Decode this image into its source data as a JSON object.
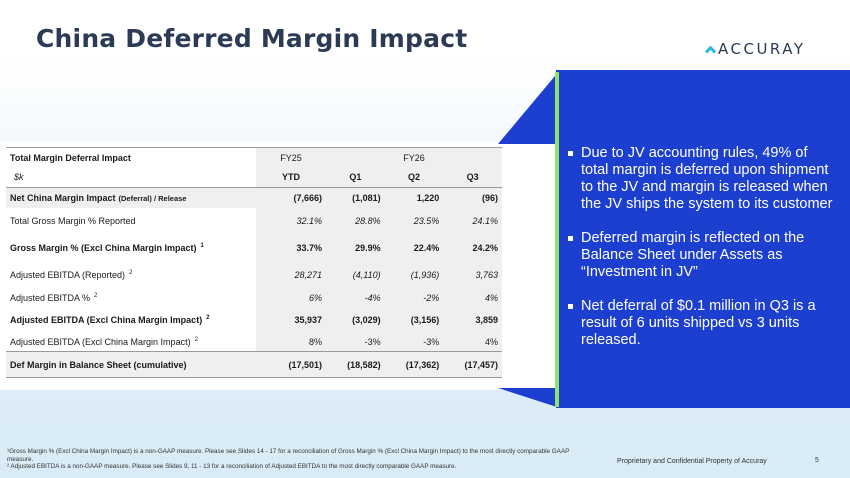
{
  "slide": {
    "title": "China Deferred Margin Impact",
    "logo": "ACCURAY",
    "page_number": "5",
    "proprietary": "Proprietary and Confidential Property of Accuray",
    "footnote1": "¹Gross Margin % (Excl China Margin Impact) is a non-GAAP measure.  Please see Slides 14 - 17 for a reconciliation of Gross Margin % (Excl China Margin Impact) to the most directly comparable GAAP measure.",
    "footnote2": "² Adjusted EBITDA is a non-GAAP measure. Please see Slides 9, 11 - 13 for a reconciliation of Adjusted EBITDA to the most directly comparable GAAP measure."
  },
  "table": {
    "header_label": "Total Margin Deferral Impact",
    "unit_label": "$k",
    "fy25": "FY25",
    "fy26": "FY26",
    "cols": [
      "YTD",
      "Q1",
      "Q2",
      "Q3"
    ],
    "rows": [
      {
        "label": "Net China Margin Impact",
        "label_suffix": "(Deferral) / Release",
        "sup": "",
        "values": [
          "(7,666)",
          "(1,081)",
          "1,220",
          "(96)"
        ],
        "style": "bold shade"
      },
      {
        "label": "Total Gross Margin % Reported",
        "label_suffix": "",
        "sup": "",
        "values": [
          "32.1%",
          "28.8%",
          "23.5%",
          "24.1%"
        ],
        "style": "italic"
      },
      {
        "label": "Gross Margin % (Excl China Margin Impact)",
        "label_suffix": "",
        "sup": "1",
        "values": [
          "33.7%",
          "29.9%",
          "22.4%",
          "24.2%"
        ],
        "style": "bold"
      },
      {
        "label": "Adjusted EBITDA (Reported)",
        "label_suffix": "",
        "sup": "2",
        "values": [
          "28,271",
          "(4,110)",
          "(1,936)",
          "3,763"
        ],
        "style": "italic"
      },
      {
        "label": "Adjusted EBITDA %",
        "label_suffix": "",
        "sup": "2",
        "values": [
          "6%",
          "-4%",
          "-2%",
          "4%"
        ],
        "style": "italic"
      },
      {
        "label": "Adjusted EBITDA (Excl China Margin Impact)",
        "label_suffix": "",
        "sup": "2",
        "values": [
          "35,937",
          "(3,029)",
          "(3,156)",
          "3,859"
        ],
        "style": "bold"
      },
      {
        "label": "Adjusted EBITDA (Excl China Margin Impact)",
        "label_suffix": "",
        "sup": "2",
        "values": [
          "8%",
          "-3%",
          "-3%",
          "4%"
        ],
        "style": "plain"
      },
      {
        "label": "Def Margin in Balance Sheet (cumulative)",
        "label_suffix": "",
        "sup": "",
        "values": [
          "(17,501)",
          "(18,582)",
          "(17,362)",
          "(17,457)"
        ],
        "style": "bold shade"
      }
    ]
  },
  "bullets": [
    "Due to JV accounting rules, 49% of total margin is deferred upon shipment to the JV and margin is released when the JV ships the system to its customer",
    "Deferred margin is reflected on the Balance Sheet under Assets as “Investment in JV”",
    "Net deferral of $0.1 million in Q3 is a result of 6 units shipped vs 3 units released."
  ]
}
